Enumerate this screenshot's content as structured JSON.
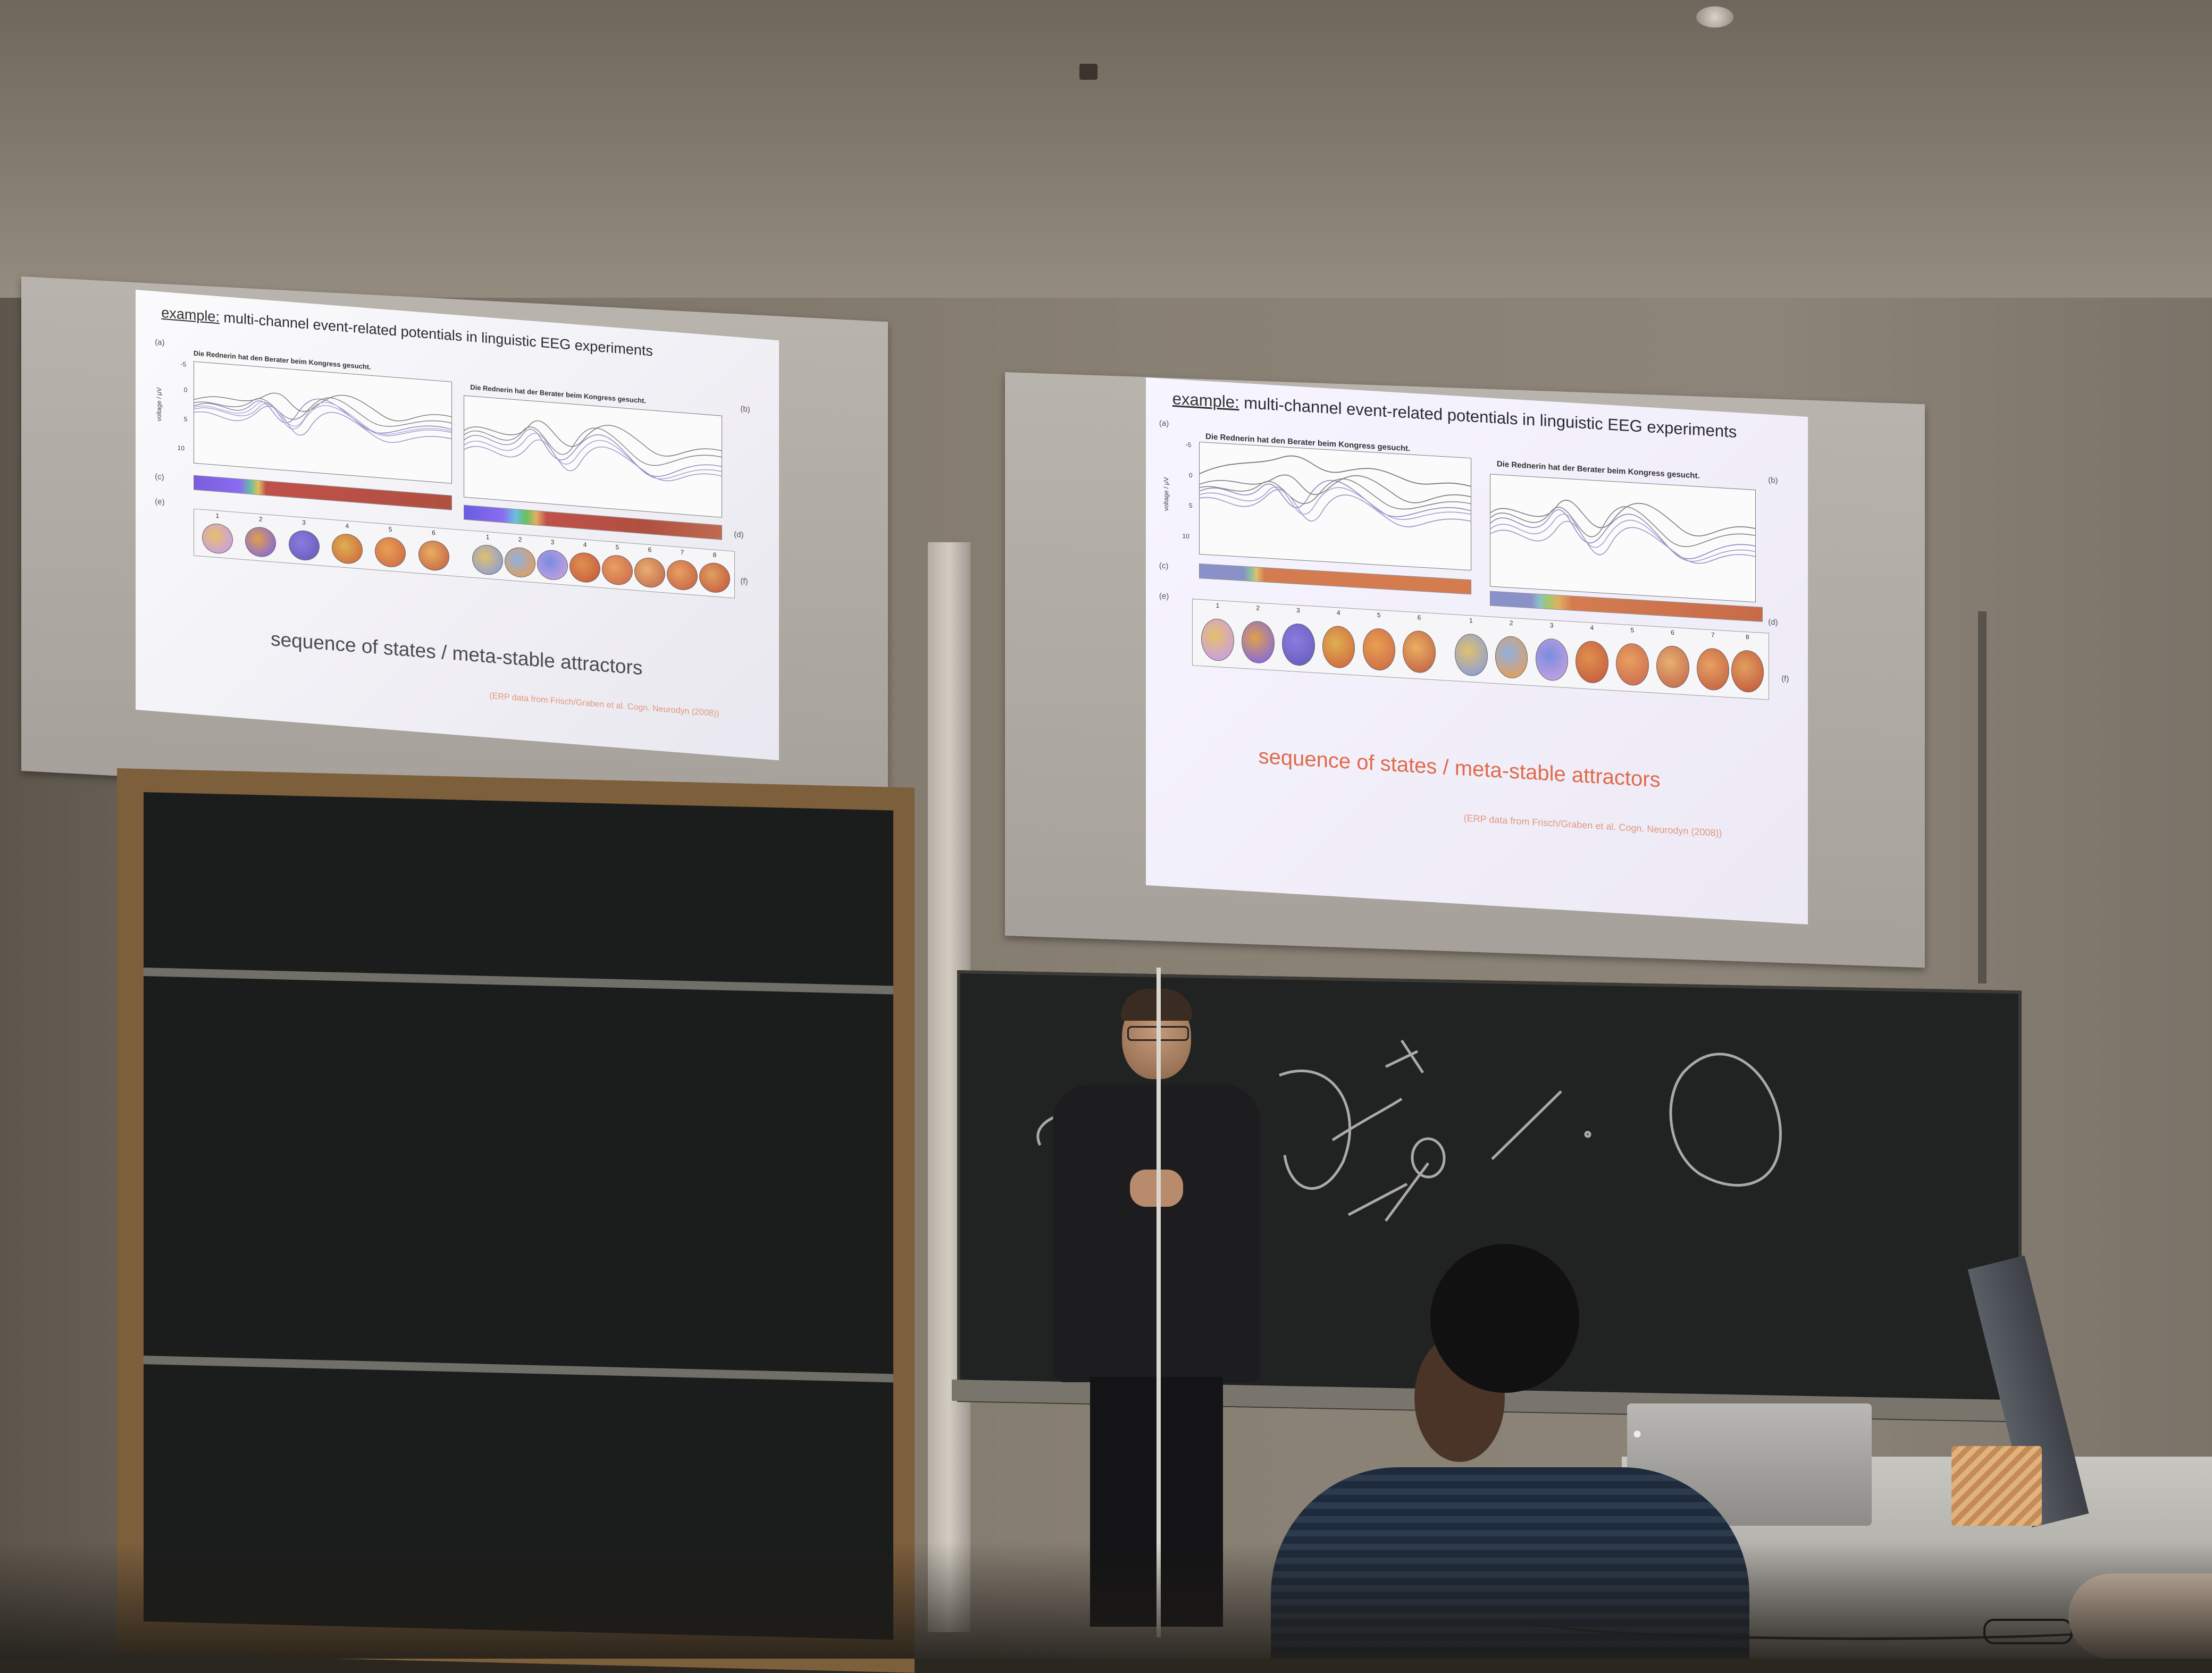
{
  "slides": {
    "left": {
      "title_prefix": "example:",
      "title_rest": " multi-channel event-related potentials in linguistic EEG experiments",
      "panel_a": "(a)",
      "panel_b": "(b)",
      "panel_c": "(c)",
      "panel_d": "(d)",
      "panel_e": "(e)",
      "panel_f": "(f)",
      "plot1_heading": "Die Rednerin hat den Berater beim Kongress gesucht.",
      "plot2_heading": "Die Rednerin hat der Berater beim Kongress gesucht.",
      "ylabel": "voltage / μV",
      "yticks": [
        "-5",
        "0",
        "5",
        "10"
      ],
      "head_numbers_1": [
        "1",
        "2",
        "3",
        "4",
        "5",
        "6"
      ],
      "head_numbers_2": [
        "1",
        "2",
        "3",
        "4",
        "5",
        "6",
        "7",
        "8"
      ],
      "subtitle": "sequence of states / meta-stable attractors",
      "citation": "(ERP data from Frisch/Graben et al. Cogn. Neurodyn (2008))"
    },
    "right": {
      "title_prefix": "example:",
      "title_rest": " multi-channel event-related potentials in linguistic EEG experiments",
      "panel_a": "(a)",
      "panel_b": "(b)",
      "panel_c": "(c)",
      "panel_d": "(d)",
      "panel_e": "(e)",
      "panel_f": "(f)",
      "plot1_heading": "Die Rednerin hat den Berater beim Kongress gesucht.",
      "plot2_heading": "Die Rednerin hat der Berater beim Kongress gesucht.",
      "ylabel": "voltage / μV",
      "yticks": [
        "-5",
        "0",
        "5",
        "10"
      ],
      "head_numbers_1": [
        "1",
        "2",
        "3",
        "4",
        "5",
        "6"
      ],
      "head_numbers_2": [
        "1",
        "2",
        "3",
        "4",
        "5",
        "6",
        "7",
        "8"
      ],
      "subtitle": "sequence of states / meta-stable attractors",
      "citation": "(ERP data from Frisch/Graben et al. Cogn. Neurodyn (2008))"
    }
  },
  "colors": {
    "slide_bg": "#f4f3f5",
    "subtitle_right": "#e06a4a",
    "board": "#1b1d1c",
    "board_frame": "#7e5f3c",
    "chalk": "#d8d8d2"
  },
  "icons": [
    "apple-logo-icon"
  ]
}
